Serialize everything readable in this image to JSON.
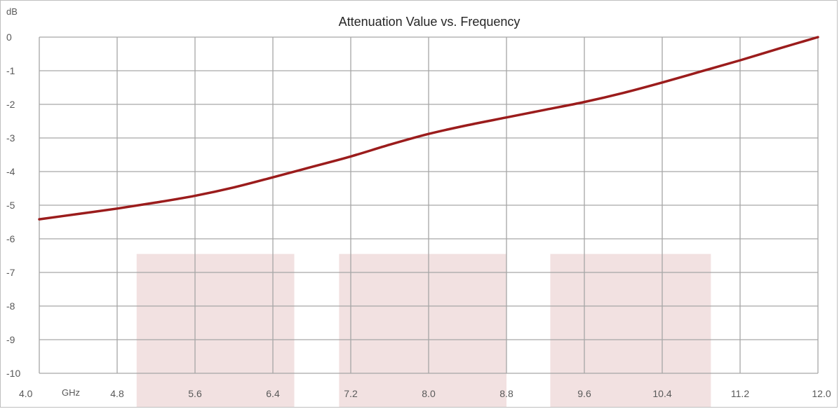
{
  "chart_data": {
    "type": "line",
    "title": "Attenuation Value vs. Frequency",
    "y_unit": "dB",
    "x_unit": "GHz",
    "xlim": [
      4.0,
      12.0
    ],
    "ylim": [
      -10,
      0
    ],
    "grid": true,
    "x_ticks": [
      "4.0",
      "4.8",
      "5.6",
      "6.4",
      "7.2",
      "8.0",
      "8.8",
      "9.6",
      "10.4",
      "11.2",
      "12.0"
    ],
    "y_ticks": [
      "0",
      "-1",
      "-2",
      "-3",
      "-4",
      "-5",
      "-6",
      "-7",
      "-8",
      "-9",
      "-10"
    ],
    "series": [
      {
        "color": "#9b1c1c",
        "x": [
          4.0,
          4.4,
          4.8,
          5.2,
          5.6,
          6.0,
          6.4,
          6.8,
          7.2,
          7.6,
          8.0,
          8.4,
          8.8,
          9.2,
          9.6,
          10.0,
          10.4,
          10.8,
          11.2,
          11.6,
          12.0
        ],
        "y": [
          -5.42,
          -5.26,
          -5.1,
          -4.92,
          -4.72,
          -4.47,
          -4.17,
          -3.86,
          -3.55,
          -3.2,
          -2.88,
          -2.62,
          -2.39,
          -2.16,
          -1.93,
          -1.66,
          -1.35,
          -1.02,
          -0.69,
          -0.34,
          0.0
        ]
      }
    ],
    "bands": [
      {
        "x": [
          5.0,
          6.62
        ],
        "y": [
          -6.45,
          -10
        ],
        "color": "#f2e1e1"
      },
      {
        "x": [
          7.08,
          8.8
        ],
        "y": [
          -6.45,
          -10
        ],
        "color": "#f2e1e1"
      },
      {
        "x": [
          9.25,
          10.9
        ],
        "y": [
          -6.45,
          -10
        ],
        "color": "#f2e1e1"
      }
    ]
  }
}
